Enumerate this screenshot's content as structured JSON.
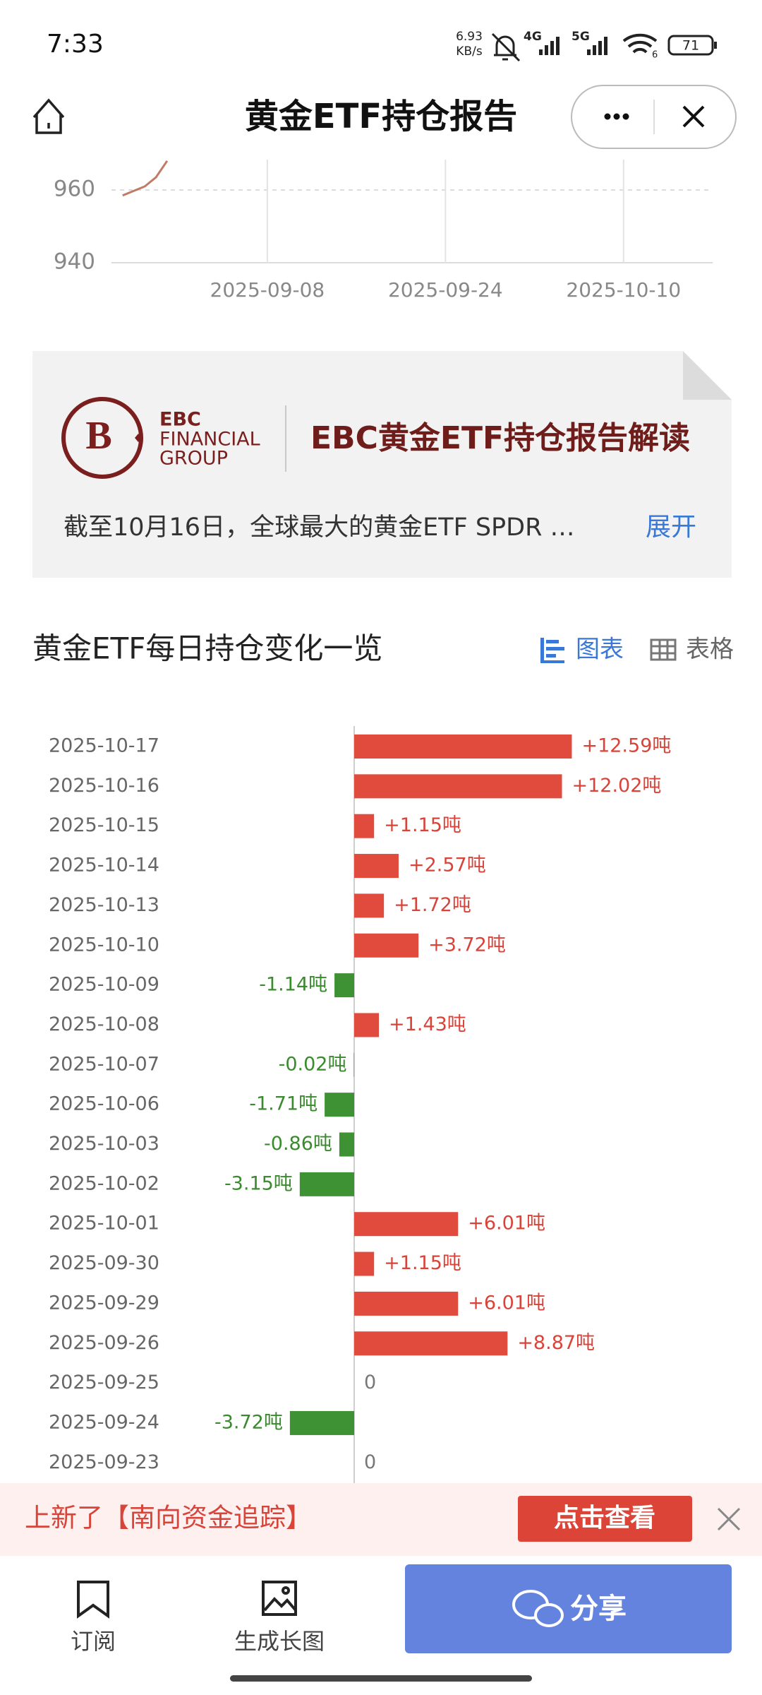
{
  "status_bar": {
    "time": "7:33",
    "net_speed": "6.93",
    "net_unit": "KB/s",
    "signal_1": "4G",
    "signal_2": "5G",
    "wifi_badge": "6",
    "battery": "71"
  },
  "header": {
    "title": "黄金ETF持仓报告"
  },
  "chart_data": [
    {
      "type": "line",
      "x": [
        "2025-08-26",
        "2025-08-28",
        "2025-08-29",
        "2025-08-30"
      ],
      "series": [
        {
          "color": "#c07a66",
          "values": [
            958.5,
            961,
            963.5,
            968
          ]
        }
      ],
      "xlim": [
        "2025-08-25",
        "2025-10-18"
      ],
      "xticks": [
        "2025-09-08",
        "2025-09-24",
        "2025-10-10"
      ],
      "ylim": [
        940,
        980
      ],
      "yticks": [
        940,
        960
      ],
      "grid": true
    },
    {
      "type": "bar",
      "orientation": "horizontal",
      "categories": [
        "2025-10-17",
        "2025-10-16",
        "2025-10-15",
        "2025-10-14",
        "2025-10-13",
        "2025-10-10",
        "2025-10-09",
        "2025-10-08",
        "2025-10-07",
        "2025-10-06",
        "2025-10-03",
        "2025-10-02",
        "2025-10-01",
        "2025-09-30",
        "2025-09-29",
        "2025-09-26",
        "2025-09-25",
        "2025-09-24",
        "2025-09-23"
      ],
      "values": [
        12.59,
        12.02,
        1.15,
        2.57,
        1.72,
        3.72,
        -1.14,
        1.43,
        -0.02,
        -1.71,
        -0.86,
        -3.15,
        6.01,
        1.15,
        6.01,
        8.87,
        0,
        -3.72,
        0
      ],
      "value_labels": [
        "+12.59吨",
        "+12.02吨",
        "+1.15吨",
        "+2.57吨",
        "+1.72吨",
        "+3.72吨",
        "-1.14吨",
        "+1.43吨",
        "-0.02吨",
        "-1.71吨",
        "-0.86吨",
        "-3.15吨",
        "+6.01吨",
        "+1.15吨",
        "+6.01吨",
        "+8.87吨",
        "0",
        "-3.72吨",
        "0"
      ],
      "positive_color": "#e04b3d",
      "negative_color": "#3f9233"
    }
  ],
  "card": {
    "brand_1": "EBC",
    "brand_2": "FINANCIAL",
    "brand_3": "GROUP",
    "title": "EBC黄金ETF持仓报告解读",
    "summary": "截至10月16日，全球最大的黄金ETF SPDR …",
    "expand": "展开"
  },
  "section": {
    "title": "黄金ETF每日持仓变化一览",
    "tab_chart": "图表",
    "tab_table": "表格"
  },
  "banner": {
    "text": "上新了【南向资金追踪】",
    "button": "点击查看"
  },
  "nav": {
    "subscribe": "订阅",
    "long_image": "生成长图",
    "share": "分享"
  }
}
